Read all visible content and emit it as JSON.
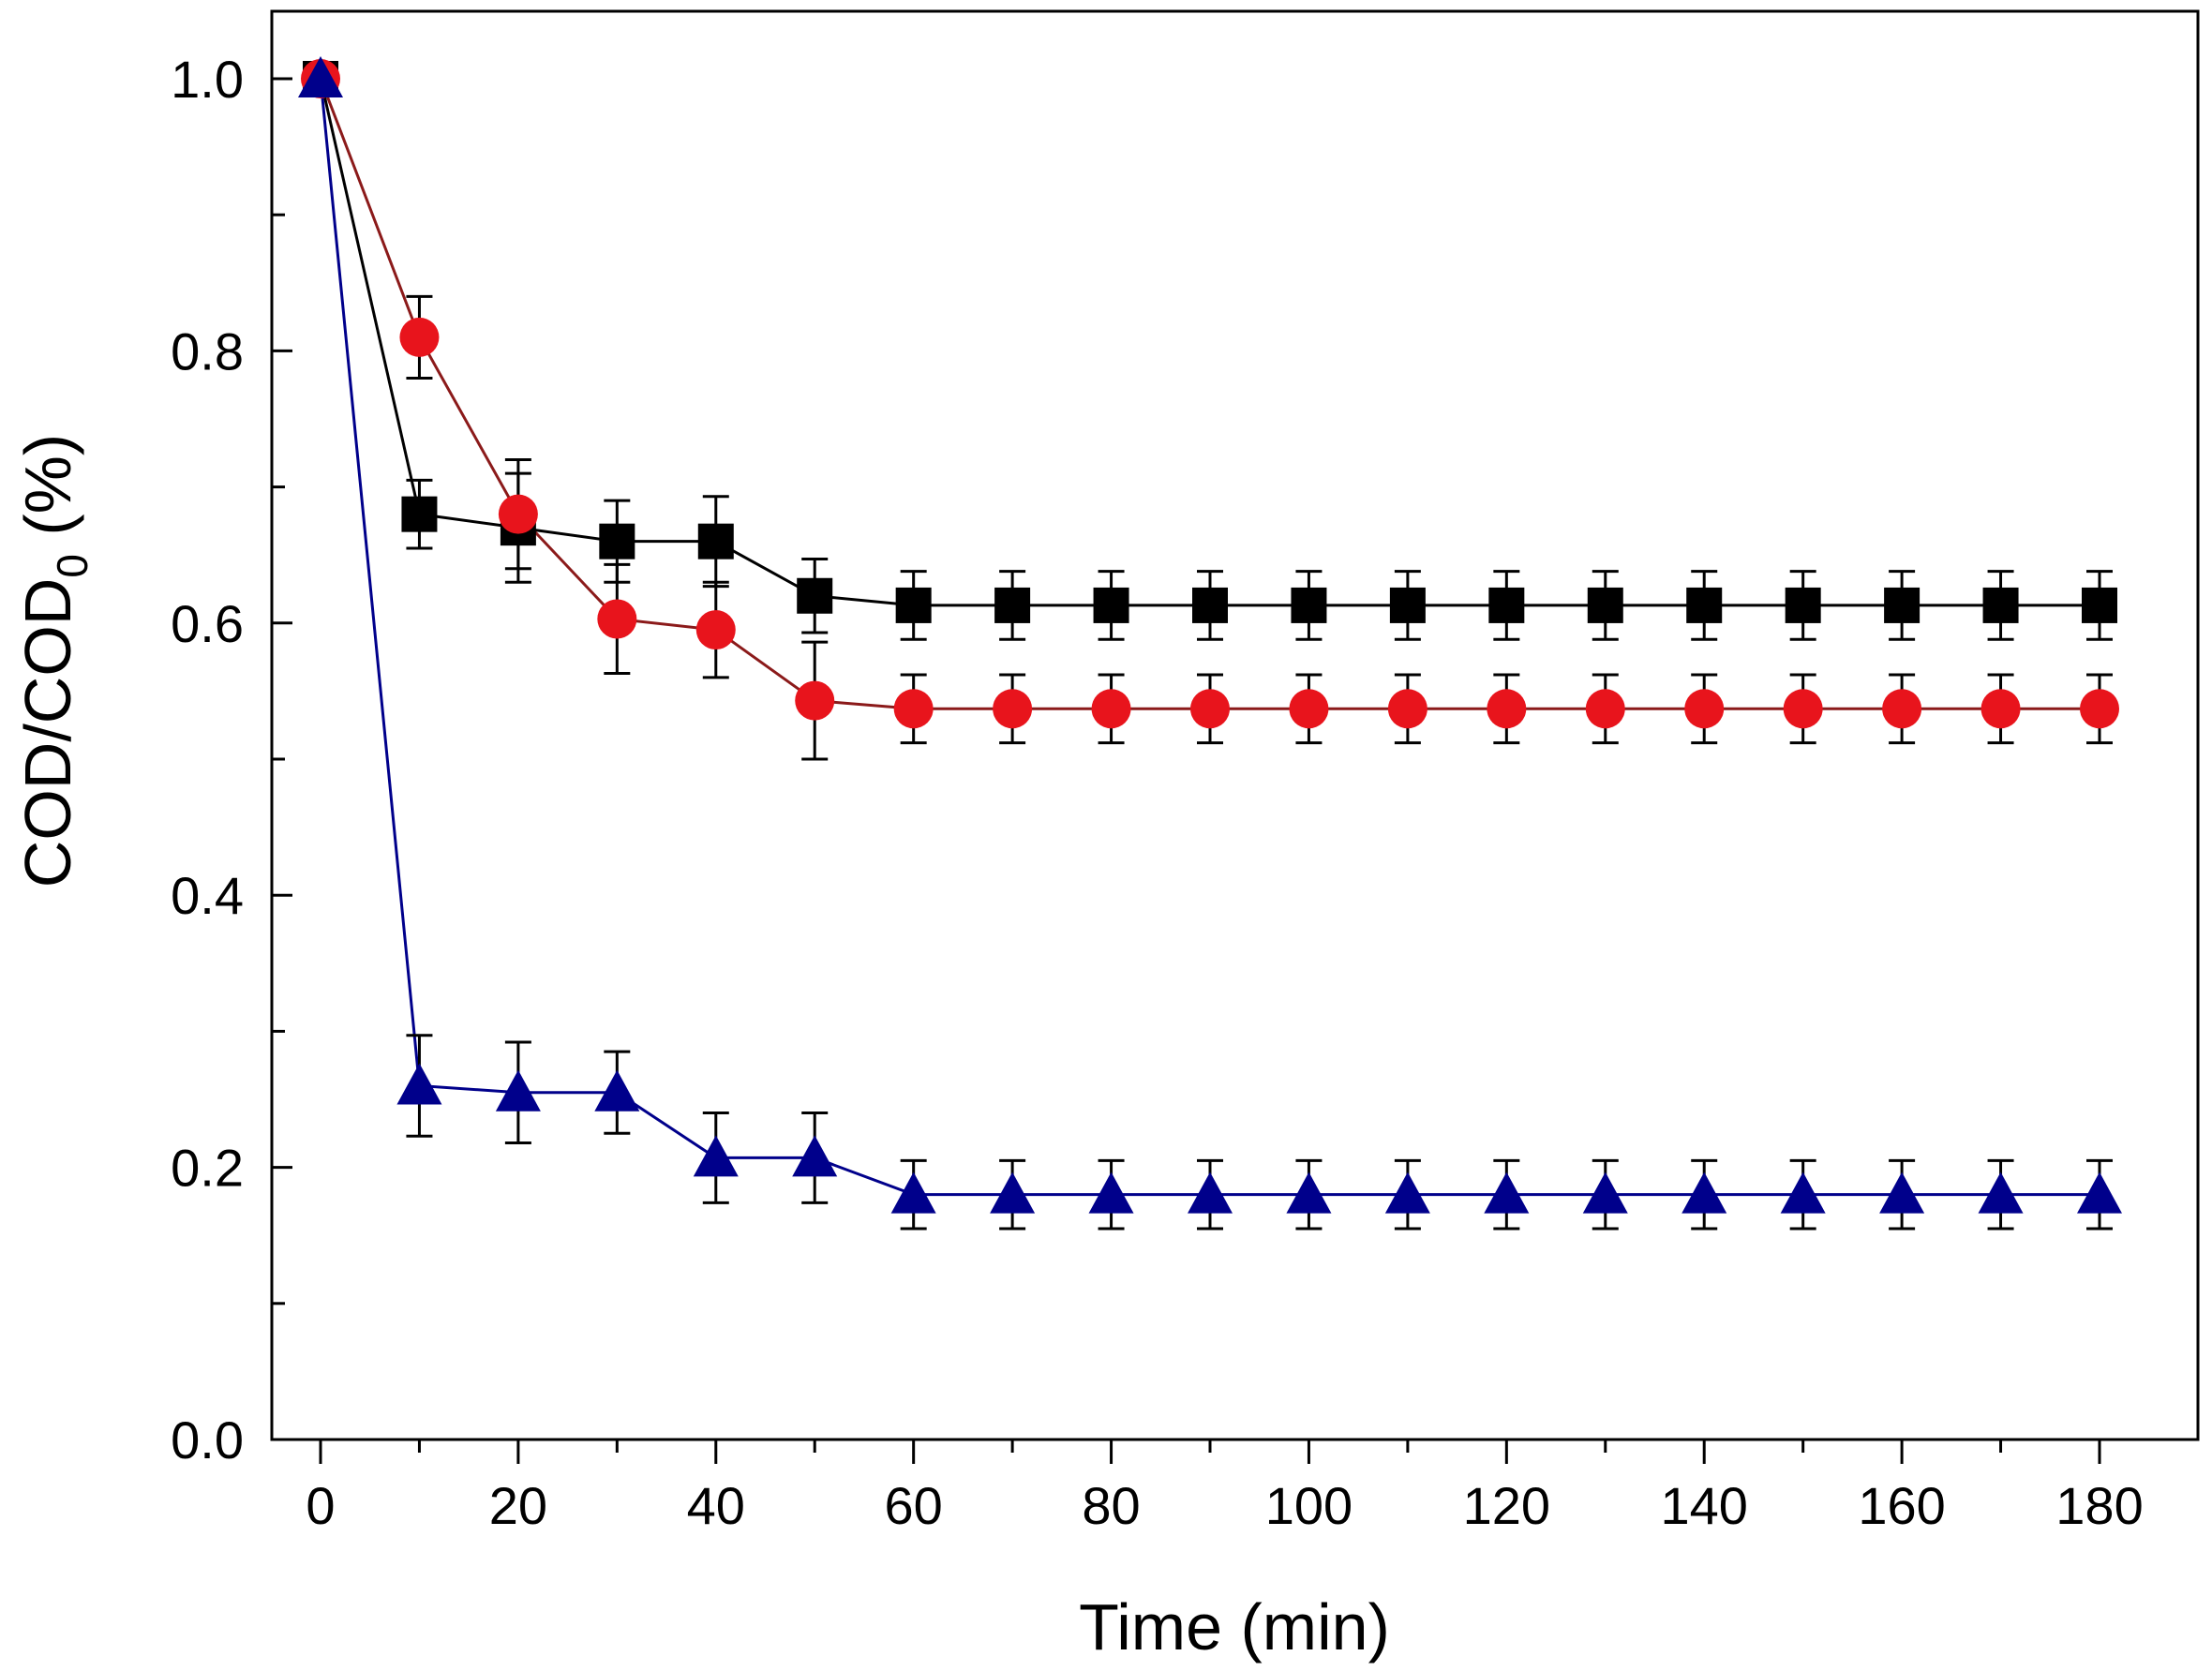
{
  "chart_data": {
    "type": "line",
    "title": "",
    "xlabel": "Time (min)",
    "ylabel": "COD/COD",
    "ylabel_subscript": "0",
    "ylabel_suffix": " (%)",
    "xlim": [
      -5,
      190
    ],
    "ylim": [
      0,
      1.05
    ],
    "xticks": [
      0,
      20,
      40,
      60,
      80,
      100,
      120,
      140,
      160,
      180
    ],
    "xtick_labels": [
      "0",
      "20",
      "40",
      "60",
      "80",
      "100",
      "120",
      "140",
      "160",
      "180"
    ],
    "yticks": [
      0.0,
      0.2,
      0.4,
      0.6,
      0.8,
      1.0
    ],
    "ytick_labels": [
      "0.0",
      "0.2",
      "0.4",
      "0.6",
      "0.8",
      "1.0"
    ],
    "y_minor_ticks": [
      0.1,
      0.3,
      0.5,
      0.7,
      0.9
    ],
    "x_minor_ticks": [
      10,
      30,
      50,
      70,
      90,
      110,
      130,
      150,
      170
    ],
    "grid": false,
    "x": [
      0,
      10,
      20,
      30,
      40,
      50,
      60,
      70,
      80,
      90,
      100,
      110,
      120,
      130,
      140,
      150,
      160,
      170,
      180
    ],
    "series": [
      {
        "name": "square series",
        "marker": "square",
        "color": "#000000",
        "line_color": "#000000",
        "values": [
          1.0,
          0.68,
          0.67,
          0.66,
          0.66,
          0.62,
          0.613,
          0.613,
          0.613,
          0.613,
          0.613,
          0.613,
          0.613,
          0.613,
          0.613,
          0.613,
          0.613,
          0.613,
          0.613
        ],
        "errors": [
          0,
          0.025,
          0.04,
          0.03,
          0.033,
          0.027,
          0.025,
          0.025,
          0.025,
          0.025,
          0.025,
          0.025,
          0.025,
          0.025,
          0.025,
          0.025,
          0.025,
          0.025,
          0.025
        ]
      },
      {
        "name": "circle series",
        "marker": "circle",
        "color": "#e8141c",
        "line_color": "#8b1a1a",
        "values": [
          1.0,
          0.81,
          0.68,
          0.603,
          0.595,
          0.543,
          0.537,
          0.537,
          0.537,
          0.537,
          0.537,
          0.537,
          0.537,
          0.537,
          0.537,
          0.537,
          0.537,
          0.537,
          0.537
        ],
        "errors": [
          0,
          0.03,
          0.04,
          0.04,
          0.035,
          0.043,
          0.025,
          0.025,
          0.025,
          0.025,
          0.025,
          0.025,
          0.025,
          0.025,
          0.025,
          0.025,
          0.025,
          0.025,
          0.025
        ]
      },
      {
        "name": "triangle series",
        "marker": "triangle",
        "color": "#00008b",
        "line_color": "#00008b",
        "values": [
          1.0,
          0.26,
          0.255,
          0.255,
          0.207,
          0.207,
          0.18,
          0.18,
          0.18,
          0.18,
          0.18,
          0.18,
          0.18,
          0.18,
          0.18,
          0.18,
          0.18,
          0.18,
          0.18
        ],
        "errors": [
          0,
          0.037,
          0.037,
          0.03,
          0.033,
          0.033,
          0.025,
          0.025,
          0.025,
          0.025,
          0.025,
          0.025,
          0.025,
          0.025,
          0.025,
          0.025,
          0.025,
          0.025,
          0.025
        ]
      }
    ]
  }
}
